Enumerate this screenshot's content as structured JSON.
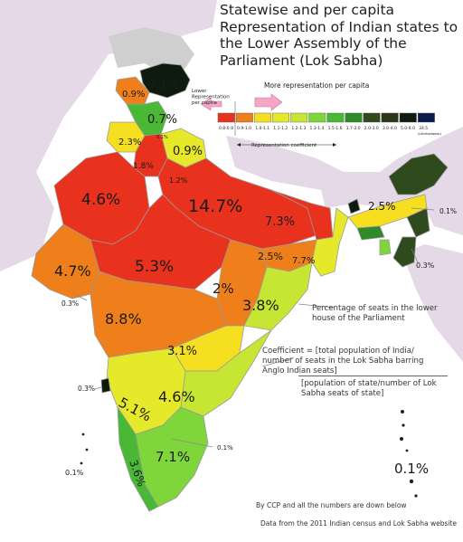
{
  "title": "Statewise and per capita Representation of Indian states to the Lower Assembly of the Parliament (Lok Sabha)",
  "legend": {
    "more_label": "More representation per capita",
    "lower_label": "Lower Representation per capita",
    "coef_label": "Representation coefficient",
    "bins": [
      {
        "label": "0.8-0.9",
        "color": "#e8321e"
      },
      {
        "label": "0.9-1.0",
        "color": "#ef7f1a"
      },
      {
        "label": "1.0-1.1",
        "color": "#f6df21"
      },
      {
        "label": "1.1-1.2",
        "color": "#e6e82a"
      },
      {
        "label": "1.2-1.3",
        "color": "#c6e633"
      },
      {
        "label": "1.3-1.4",
        "color": "#7fd63a"
      },
      {
        "label": "1.5-1.6",
        "color": "#49b935"
      },
      {
        "label": "1.7-2.0",
        "color": "#2f8a2a"
      },
      {
        "label": "2.0-3.0",
        "color": "#2f4a1c"
      },
      {
        "label": "3.0-4.0",
        "color": "#2b3516"
      },
      {
        "label": "5.0-9.0",
        "color": "#0f1a0f"
      },
      {
        "label": "34.5",
        "color": "#0b1a4d"
      }
    ],
    "last_bin_note": "(Lakshadweep)"
  },
  "region_labels": [
    {
      "text": "0.1%"
    },
    {
      "text": "0.9%"
    },
    {
      "text": "0.7%"
    },
    {
      "text": "2.3%"
    },
    {
      "text": "0.1%"
    },
    {
      "text": "0.9%"
    },
    {
      "text": "1.8%"
    },
    {
      "text": "1.2%"
    },
    {
      "text": "4.6%"
    },
    {
      "text": "14.7%"
    },
    {
      "text": "7.3%"
    },
    {
      "text": "5.3%"
    },
    {
      "text": "4.7%"
    },
    {
      "text": "2.5%"
    },
    {
      "text": "7.7%"
    },
    {
      "text": "2%"
    },
    {
      "text": "3.8%"
    },
    {
      "text": "8.8%"
    },
    {
      "text": "3.1%"
    },
    {
      "text": "5.1%"
    },
    {
      "text": "4.6%"
    },
    {
      "text": "7.1%"
    },
    {
      "text": "3.6%"
    },
    {
      "text": "2.5%"
    },
    {
      "text": "0.1%"
    },
    {
      "text": "0.3%"
    },
    {
      "text": "0.3%"
    },
    {
      "text": "0.3%"
    },
    {
      "text": "0.1%"
    },
    {
      "text": "0.1%"
    },
    {
      "text": "0.1%"
    }
  ],
  "annotations": {
    "percent_note": "Percentage of seats in the lower house of the Parliament",
    "coef_numerator": "Coefficient = [total population of India/ number of seats in the Lok Sabha barring Anglo Indian seats]",
    "coef_denominator": "[population of state/number of Lok Sabha seats of state]",
    "credit": "By CCP and all the numbers are down below",
    "source": "Data from the 2011 Indian census and Lok Sabha website"
  }
}
